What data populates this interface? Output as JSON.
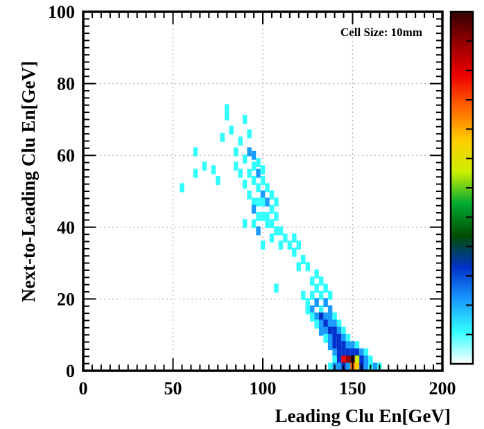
{
  "chart_data": {
    "type": "heatmap",
    "title": "",
    "annotation": "Cell Size: 10mm",
    "xlabel": "Leading Clu En[GeV]",
    "ylabel": "Next-to-Leading Clu En[GeV]",
    "xlim": [
      0,
      200
    ],
    "ylim": [
      0,
      100
    ],
    "x_ticks": [
      "0",
      "50",
      "100",
      "150",
      "200"
    ],
    "y_ticks": [
      "0",
      "20",
      "40",
      "60",
      "80",
      "100"
    ],
    "grid": true,
    "colorbar": {
      "position": "right",
      "colors": [
        "#ffffff",
        "#33ffff",
        "#1a9bff",
        "#0033cc",
        "#004d00",
        "#00aa33",
        "#ccee00",
        "#ffcc00",
        "#ff6600",
        "#ee0000",
        "#990000",
        "#330000"
      ]
    },
    "bins": {
      "x_width_gev": 2.5,
      "y_width_gev": 2.5,
      "cells": [
        [
          55,
          51,
          1
        ],
        [
          62.5,
          55,
          1
        ],
        [
          62.5,
          61,
          1
        ],
        [
          67.5,
          57,
          1
        ],
        [
          72.5,
          56,
          1
        ],
        [
          75,
          53,
          1
        ],
        [
          77.5,
          65,
          1
        ],
        [
          80,
          71,
          1
        ],
        [
          80,
          73,
          1
        ],
        [
          82.5,
          67,
          1
        ],
        [
          85,
          61,
          1
        ],
        [
          85,
          57,
          1
        ],
        [
          87.5,
          55,
          1
        ],
        [
          87.5,
          64,
          1
        ],
        [
          90,
          70,
          1
        ],
        [
          90,
          59,
          1
        ],
        [
          90,
          52,
          1
        ],
        [
          90,
          41,
          1
        ],
        [
          92.5,
          66,
          1
        ],
        [
          92.5,
          61,
          2
        ],
        [
          92.5,
          55,
          1
        ],
        [
          92.5,
          49,
          1
        ],
        [
          95,
          60,
          2
        ],
        [
          95,
          57,
          1
        ],
        [
          95,
          53,
          1
        ],
        [
          95,
          47,
          1
        ],
        [
          95,
          45,
          2
        ],
        [
          95,
          41,
          1
        ],
        [
          97.5,
          58,
          1
        ],
        [
          97.5,
          55,
          2
        ],
        [
          97.5,
          51,
          1
        ],
        [
          97.5,
          47,
          1
        ],
        [
          97.5,
          43,
          1
        ],
        [
          97.5,
          39,
          2
        ],
        [
          100,
          56,
          1
        ],
        [
          100,
          53,
          1
        ],
        [
          100,
          49,
          2
        ],
        [
          100,
          47,
          1
        ],
        [
          100,
          43,
          1
        ],
        [
          100,
          35,
          1
        ],
        [
          102.5,
          51,
          1
        ],
        [
          102.5,
          47,
          2
        ],
        [
          102.5,
          43,
          1
        ],
        [
          102.5,
          41,
          1
        ],
        [
          105,
          49,
          1
        ],
        [
          105,
          45,
          1
        ],
        [
          105,
          41,
          1
        ],
        [
          105,
          37,
          1
        ],
        [
          107.5,
          47,
          1
        ],
        [
          107.5,
          43,
          1
        ],
        [
          107.5,
          39,
          1
        ],
        [
          110,
          39,
          1
        ],
        [
          110,
          35,
          1
        ],
        [
          112.5,
          37,
          1
        ],
        [
          115,
          35,
          1
        ],
        [
          117.5,
          37,
          1
        ],
        [
          117.5,
          33,
          1
        ],
        [
          120,
          35,
          1
        ],
        [
          120,
          29,
          1
        ],
        [
          122.5,
          31,
          1
        ],
        [
          125,
          29,
          1
        ],
        [
          127.5,
          25,
          1
        ],
        [
          130,
          27,
          1
        ],
        [
          107.5,
          23,
          1
        ],
        [
          122.5,
          21,
          1
        ],
        [
          130,
          23,
          1
        ],
        [
          132.5,
          21,
          1
        ],
        [
          125,
          19,
          1
        ],
        [
          127.5,
          21,
          1
        ],
        [
          132.5,
          25,
          1
        ],
        [
          135,
          23,
          1
        ],
        [
          137.5,
          21,
          1
        ],
        [
          125,
          17,
          1
        ],
        [
          127.5,
          17,
          2
        ],
        [
          130,
          19,
          2
        ],
        [
          132.5,
          17,
          1
        ],
        [
          135,
          19,
          2
        ],
        [
          137.5,
          17,
          2
        ],
        [
          127.5,
          15,
          1
        ],
        [
          130,
          15,
          2
        ],
        [
          132.5,
          15,
          3
        ],
        [
          135,
          15,
          2
        ],
        [
          137.5,
          15,
          2
        ],
        [
          140,
          15,
          1
        ],
        [
          130,
          13,
          1
        ],
        [
          132.5,
          13,
          2
        ],
        [
          135,
          13,
          3
        ],
        [
          137.5,
          13,
          2
        ],
        [
          140,
          13,
          2
        ],
        [
          142.5,
          13,
          1
        ],
        [
          132.5,
          11,
          2
        ],
        [
          135,
          11,
          2
        ],
        [
          137.5,
          11,
          3
        ],
        [
          140,
          11,
          3
        ],
        [
          142.5,
          11,
          2
        ],
        [
          145,
          11,
          1
        ],
        [
          135,
          9,
          1
        ],
        [
          137.5,
          9,
          2
        ],
        [
          140,
          9,
          3
        ],
        [
          142.5,
          9,
          3
        ],
        [
          145,
          9,
          2
        ],
        [
          147.5,
          9,
          1
        ],
        [
          137.5,
          7,
          2
        ],
        [
          140,
          7,
          3
        ],
        [
          142.5,
          7,
          3
        ],
        [
          145,
          7,
          3
        ],
        [
          147.5,
          7,
          2
        ],
        [
          150,
          7,
          2
        ],
        [
          152.5,
          7,
          1
        ],
        [
          140,
          5,
          2
        ],
        [
          142.5,
          5,
          3
        ],
        [
          145,
          5,
          3
        ],
        [
          147.5,
          5,
          3
        ],
        [
          150,
          5,
          3
        ],
        [
          152.5,
          5,
          3
        ],
        [
          155,
          5,
          2
        ],
        [
          157.5,
          5,
          1
        ],
        [
          140,
          3,
          1
        ],
        [
          142.5,
          3,
          3
        ],
        [
          145,
          3,
          9
        ],
        [
          147.5,
          3,
          10
        ],
        [
          150,
          3,
          11
        ],
        [
          152.5,
          3,
          6
        ],
        [
          155,
          3,
          3
        ],
        [
          157.5,
          3,
          2
        ],
        [
          160,
          3,
          1
        ],
        [
          137.5,
          1,
          1
        ],
        [
          140,
          1,
          2
        ],
        [
          142.5,
          1,
          2
        ],
        [
          145,
          1,
          3
        ],
        [
          147.5,
          1,
          2
        ],
        [
          150,
          1,
          8
        ],
        [
          152.5,
          1,
          7
        ],
        [
          155,
          1,
          3
        ],
        [
          157.5,
          1,
          2
        ],
        [
          160,
          1,
          1
        ],
        [
          162.5,
          1,
          2
        ],
        [
          165,
          1,
          1
        ]
      ]
    }
  }
}
